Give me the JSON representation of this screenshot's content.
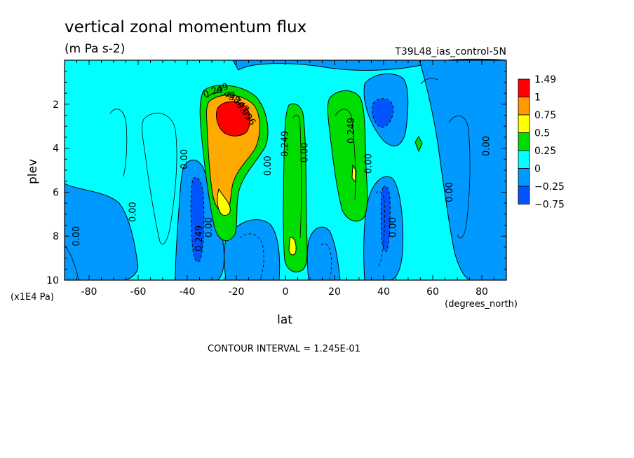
{
  "chart_data": {
    "type": "heatmap",
    "title": "vertical zonal momentum flux",
    "units": "(m Pa s-2)",
    "dataset": "T39L48_ias_control-5N",
    "xlabel": "lat",
    "xunits": "(degrees_north)",
    "ylabel": "plev",
    "yunits": "(x1E4 Pa)",
    "footnote": "CONTOUR INTERVAL = 1.245E-01",
    "xlim": [
      -90,
      90
    ],
    "ylim": [
      0,
      10
    ],
    "y_inverted": true,
    "xticks": [
      -80,
      -60,
      -40,
      -20,
      0,
      20,
      40,
      60,
      80
    ],
    "yticks": [
      2,
      4,
      6,
      8,
      10
    ],
    "colorbar": {
      "labels": [
        "1.49",
        "1",
        "0.75",
        "0.5",
        "0.25",
        "0",
        "−0.25",
        "−0.75"
      ],
      "colors": [
        "#ff0000",
        "#ff9900",
        "#ffff00",
        "#00dd00",
        "#00ffff",
        "#0099ff",
        "#0055ff"
      ]
    },
    "contour_labels": [
      {
        "text": "0.00",
        "lat": -84,
        "plev": 8.0,
        "rot": -90
      },
      {
        "text": "0.00",
        "lat": -61,
        "plev": 6.9,
        "rot": -90
      },
      {
        "text": "0.00",
        "lat": -40,
        "plev": 4.5,
        "rot": -90
      },
      {
        "text": "0.00",
        "lat": -30,
        "plev": 7.6,
        "rot": -90
      },
      {
        "text": "0.249",
        "lat": -34,
        "plev": 8.1,
        "rot": -90
      },
      {
        "text": "0.00",
        "lat": -6,
        "plev": 4.8,
        "rot": -90
      },
      {
        "text": "0.249",
        "lat": 1,
        "plev": 3.8,
        "rot": -90
      },
      {
        "text": "0.00",
        "lat": 9,
        "plev": 4.2,
        "rot": -90
      },
      {
        "text": "0.249",
        "lat": 28,
        "plev": 3.2,
        "rot": -90
      },
      {
        "text": "0.00",
        "lat": 35,
        "plev": 4.7,
        "rot": -90
      },
      {
        "text": "0.00",
        "lat": 45,
        "plev": 7.6,
        "rot": -90
      },
      {
        "text": "0.00",
        "lat": 68,
        "plev": 6.0,
        "rot": -90
      },
      {
        "text": "0.00",
        "lat": 83,
        "plev": 3.9,
        "rot": -90
      },
      {
        "text": "0.249",
        "lat": -28,
        "plev": 1.5,
        "rot": -20
      },
      {
        "text": "0.498",
        "lat": -24,
        "plev": 1.7,
        "rot": 30
      },
      {
        "text": "0.747",
        "lat": -20,
        "plev": 2.0,
        "rot": 45
      },
      {
        "text": "0.996",
        "lat": -17,
        "plev": 2.5,
        "rot": 55
      }
    ],
    "features": [
      {
        "sign": "positive",
        "lat": -22,
        "plev": 2.8,
        "peak": 1.49
      },
      {
        "sign": "positive",
        "lat": 4,
        "plev": 8.3,
        "peak": 0.6
      },
      {
        "sign": "positive",
        "lat": 29,
        "plev": 5.0,
        "peak": 0.6
      },
      {
        "sign": "positive",
        "lat": 53,
        "plev": 3.9,
        "peak": 0.3
      },
      {
        "sign": "negative",
        "lat": 39,
        "plev": 2.6,
        "peak": -0.75
      },
      {
        "sign": "negative",
        "lat": -33,
        "plev": 7.6,
        "peak": -0.75
      },
      {
        "sign": "negative",
        "lat": 40,
        "plev": 7.5,
        "peak": -0.75
      }
    ]
  }
}
